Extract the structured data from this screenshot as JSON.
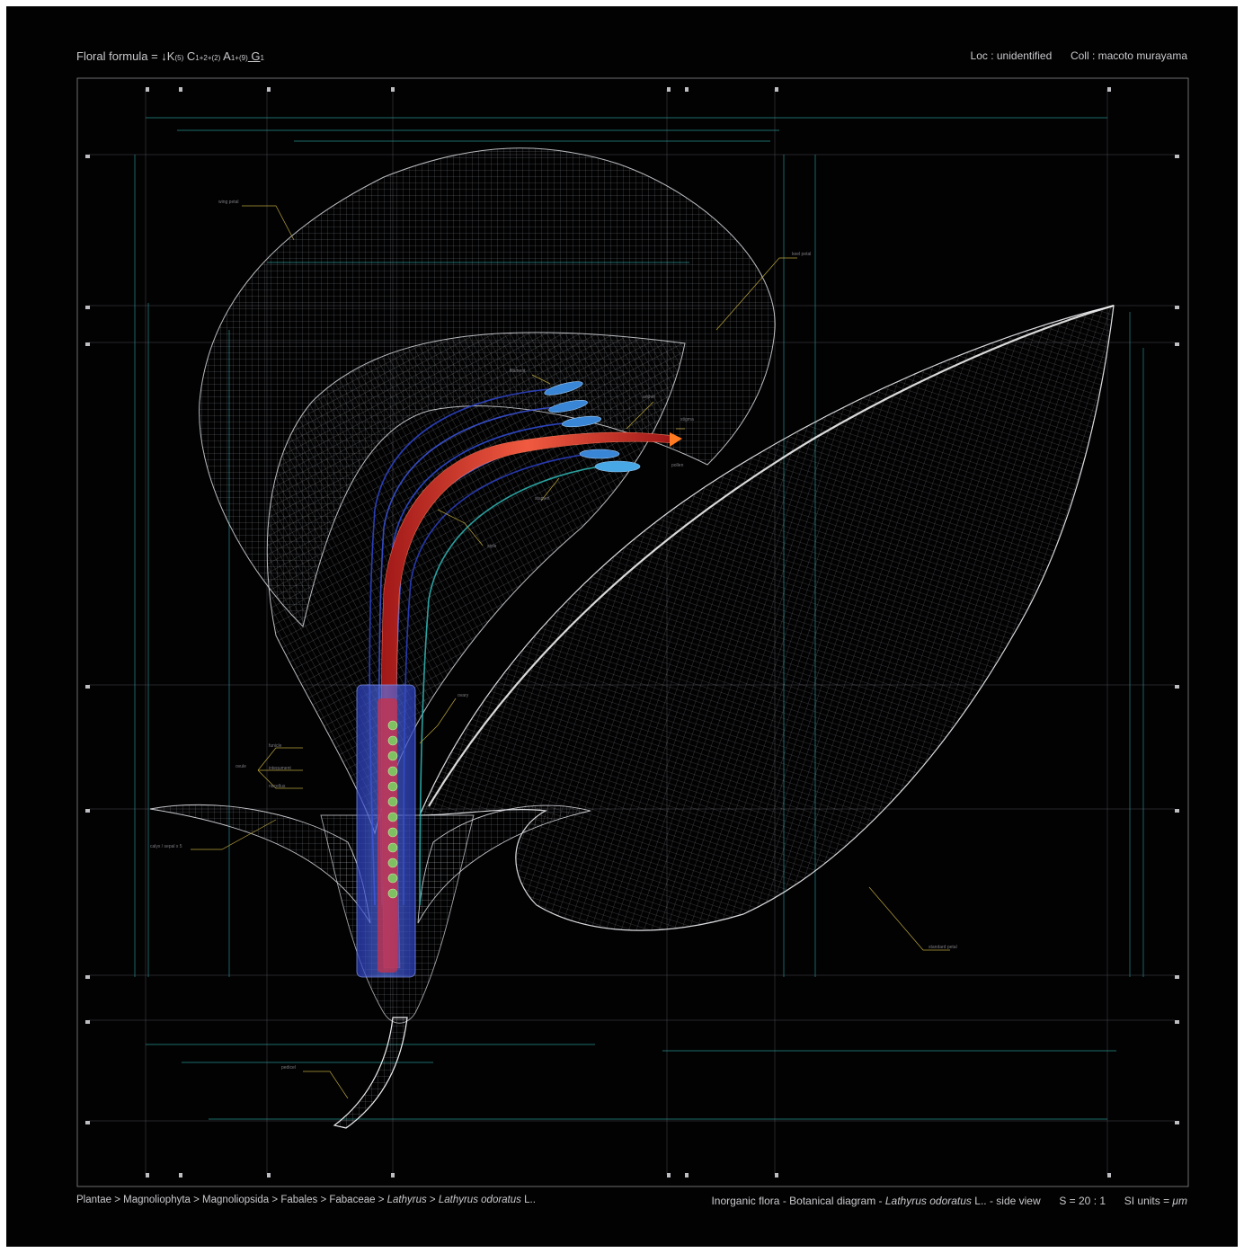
{
  "header": {
    "formula_label": "Floral formula = ",
    "formula_symbol": "↓",
    "formula_k": "K",
    "formula_k_sub": "(5)",
    "formula_c": " C",
    "formula_c_sub": "1+2+(2)",
    "formula_a": " A",
    "formula_a_sub": "1+(9)",
    "formula_g": " G",
    "formula_g_sub": "1",
    "loc": "Loc : unidentified",
    "coll": "Coll : macoto murayama"
  },
  "footer": {
    "taxonomy": [
      "Plantae",
      "Magnoliophyta",
      "Magnoliopsida",
      "Fabales",
      "Fabaceae"
    ],
    "taxonomy_separator": " > ",
    "genus": "Lathyrus",
    "species": "Lathyrus odoratus",
    "species_author": " L..",
    "caption_prefix": "Inorganic flora - Botanical diagram - ",
    "caption_species": "Lathyrus odoratus",
    "caption_suffix": " L.. - side view",
    "scale": "S = 20 : 1",
    "units_prefix": "SI units = ",
    "units": "μm"
  },
  "labels": {
    "wing_petal": "wing petal",
    "keel_petal": "keel petal",
    "standard_petal": "standard petal",
    "calyx_sepal": "calyx / sepal x 5",
    "pedicel": "pedicel",
    "ovule": "ovule",
    "funicle": "funicle",
    "integument": "integument",
    "nucellus": "nucellus",
    "style": "style",
    "stigma": "stigma",
    "anther": "anther",
    "filament": "filament",
    "stamen": "stamen",
    "pollen": "pollen",
    "ovary": "ovary"
  },
  "colors": {
    "background": "#020203",
    "wireframe": "#d9dbe0",
    "guide_teal": "#2fb3b0",
    "guide_yellow": "#b8a23a",
    "ovary_blue": "#3350d8",
    "pistil_red": "#d8342c",
    "ovule_green": "#7fc060",
    "anther_blue": "#3a86d6",
    "text": "#c9c9cc"
  }
}
